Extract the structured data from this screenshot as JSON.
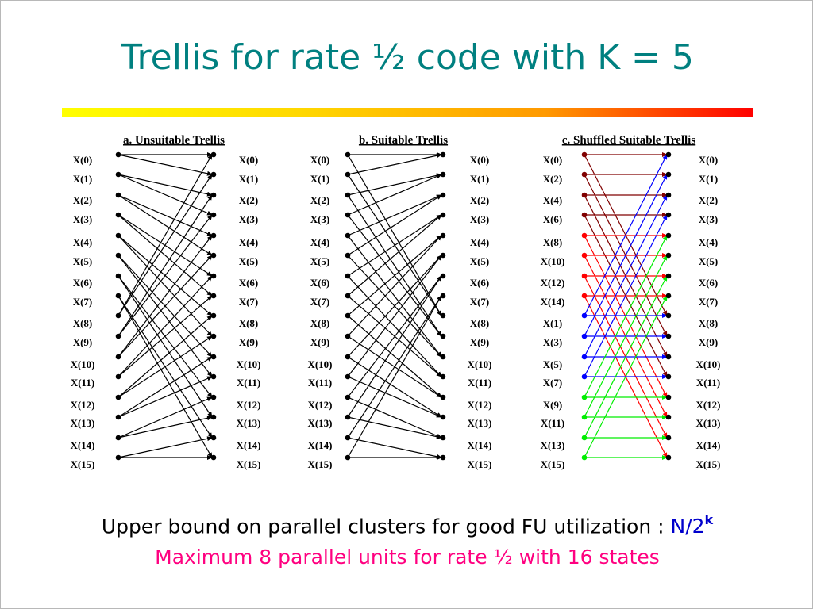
{
  "title": "Trellis for rate ½ code with K = 5",
  "panels": [
    {
      "caption": "a. Unsuitable Trellis",
      "left_labels": [
        "X(0)",
        "X(1)",
        "X(2)",
        "X(3)",
        "X(4)",
        "X(5)",
        "X(6)",
        "X(7)",
        "X(8)",
        "X(9)",
        "X(10)",
        "X(11)",
        "X(12)",
        "X(13)",
        "X(14)",
        "X(15)"
      ],
      "right_labels": [
        "X(0)",
        "X(1)",
        "X(2)",
        "X(3)",
        "X(4)",
        "X(5)",
        "X(6)",
        "X(7)",
        "X(8)",
        "X(9)",
        "X(10)",
        "X(11)",
        "X(12)",
        "X(13)",
        "X(14)",
        "X(15)"
      ]
    },
    {
      "caption": "b. Suitable Trellis",
      "left_labels": [
        "X(0)",
        "X(1)",
        "X(2)",
        "X(3)",
        "X(4)",
        "X(5)",
        "X(6)",
        "X(7)",
        "X(8)",
        "X(9)",
        "X(10)",
        "X(11)",
        "X(12)",
        "X(13)",
        "X(14)",
        "X(15)"
      ],
      "right_labels": [
        "X(0)",
        "X(1)",
        "X(2)",
        "X(3)",
        "X(4)",
        "X(5)",
        "X(6)",
        "X(7)",
        "X(8)",
        "X(9)",
        "X(10)",
        "X(11)",
        "X(12)",
        "X(13)",
        "X(14)",
        "X(15)"
      ]
    },
    {
      "caption": "c. Shuffled Suitable Trellis",
      "left_labels": [
        "X(0)",
        "X(2)",
        "X(4)",
        "X(6)",
        "X(8)",
        "X(10)",
        "X(12)",
        "X(14)",
        "X(1)",
        "X(3)",
        "X(5)",
        "X(7)",
        "X(9)",
        "X(11)",
        "X(13)",
        "X(15)"
      ],
      "right_labels": [
        "X(0)",
        "X(1)",
        "X(2)",
        "X(3)",
        "X(4)",
        "X(5)",
        "X(6)",
        "X(7)",
        "X(8)",
        "X(9)",
        "X(10)",
        "X(11)",
        "X(12)",
        "X(13)",
        "X(14)",
        "X(15)"
      ]
    }
  ],
  "colors": {
    "title": "#008080",
    "dark_red": "#800000",
    "red": "#ff0000",
    "blue": "#0000ff",
    "green": "#00ee00",
    "footer_highlight": "#ff0080",
    "formula": "#0000cc"
  },
  "footer": {
    "line1_text": "Upper bound on parallel clusters for good FU utilization : ",
    "line1_formula": "N/2",
    "line1_formula_sup": "k",
    "line2": "Maximum 8 parallel units for rate ½ with 16 states"
  }
}
